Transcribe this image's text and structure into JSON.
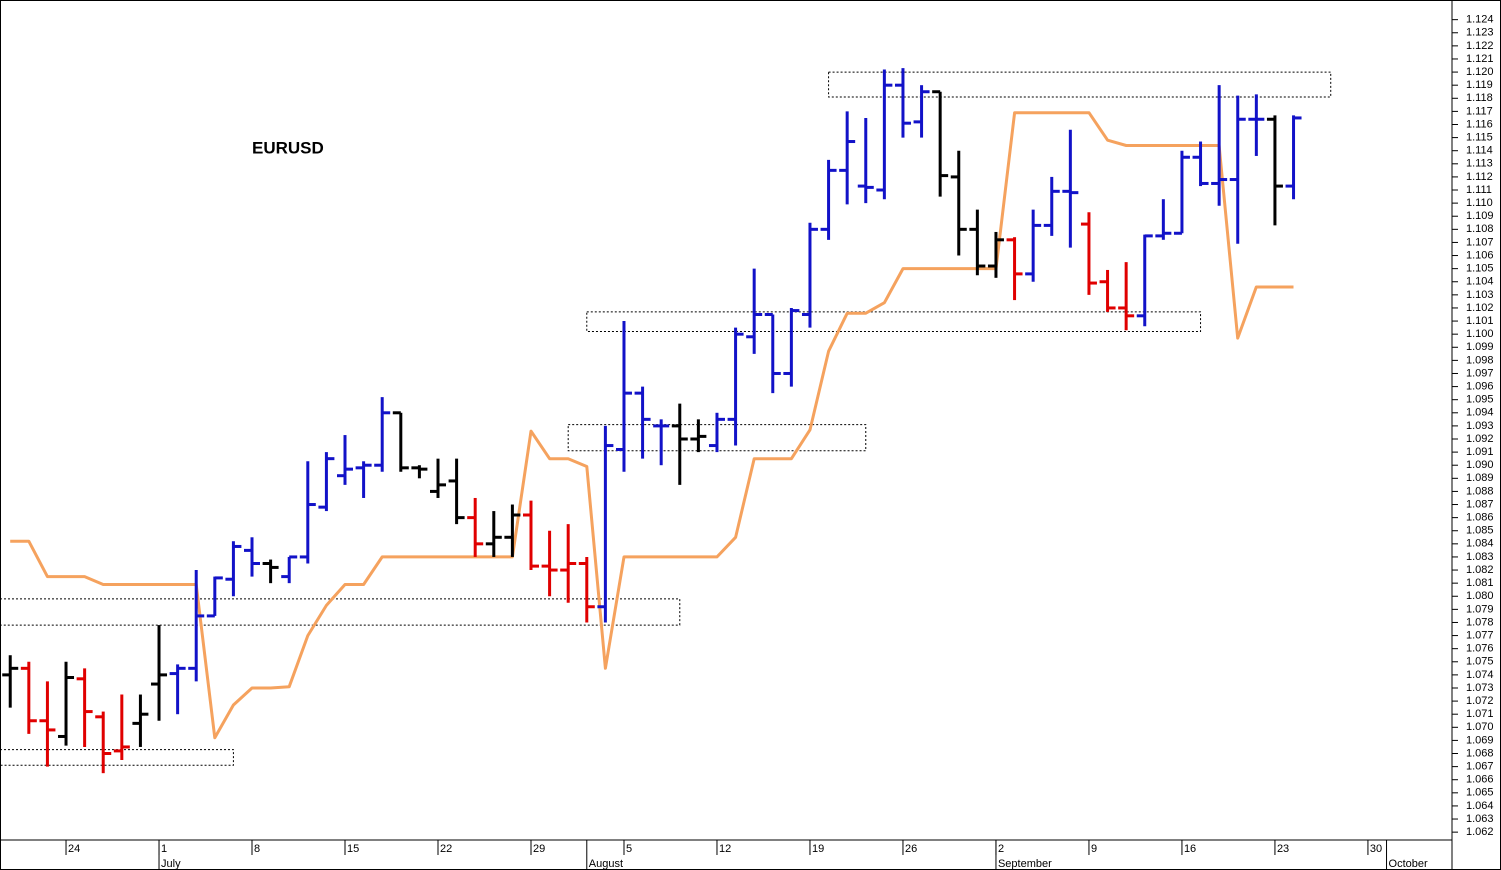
{
  "chart_data": {
    "type": "ohlc",
    "title": "EURUSD",
    "xlim": [
      -3.55,
      74.52
    ],
    "ylim": [
      1.0614,
      1.1255
    ],
    "xticks": [
      {
        "value": 0,
        "label": "24"
      },
      {
        "value": 5,
        "label": "1"
      },
      {
        "value": 10,
        "label": "8"
      },
      {
        "value": 15,
        "label": "15"
      },
      {
        "value": 20,
        "label": "22"
      },
      {
        "value": 25,
        "label": "29"
      },
      {
        "value": 30,
        "label": "5"
      },
      {
        "value": 35,
        "label": "12"
      },
      {
        "value": 40,
        "label": "19"
      },
      {
        "value": 45,
        "label": "26"
      },
      {
        "value": 50,
        "label": "2"
      },
      {
        "value": 55,
        "label": "9"
      },
      {
        "value": 60,
        "label": "16"
      },
      {
        "value": 65,
        "label": "23"
      },
      {
        "value": 70,
        "label": "30"
      }
    ],
    "month_ticks": [
      {
        "value": 5,
        "label": "July"
      },
      {
        "value": 28,
        "label": "August"
      },
      {
        "value": 50,
        "label": "September"
      },
      {
        "value": 71,
        "label": "October"
      }
    ],
    "yticks": [
      1.062,
      1.063,
      1.064,
      1.065,
      1.066,
      1.067,
      1.068,
      1.069,
      {
        "value": 1.07,
        "label": "1.070"
      },
      1.071,
      1.072,
      1.073,
      1.074,
      1.075,
      1.076,
      1.077,
      1.078,
      1.079,
      {
        "value": 1.08,
        "label": "1.080"
      },
      1.081,
      1.082,
      1.083,
      1.084,
      1.085,
      1.086,
      1.087,
      1.088,
      1.089,
      {
        "value": 1.09,
        "label": "1.090"
      },
      1.091,
      1.092,
      1.093,
      1.094,
      1.095,
      1.096,
      1.097,
      1.098,
      1.099,
      {
        "value": 1.1,
        "label": "1.100"
      },
      1.101,
      1.102,
      1.103,
      1.104,
      1.105,
      1.106,
      1.107,
      1.108,
      1.109,
      {
        "value": 1.11,
        "label": "1.110"
      },
      1.111,
      1.112,
      1.113,
      1.114,
      1.115,
      1.116,
      1.117,
      1.118,
      1.119,
      {
        "value": 1.12,
        "label": "1.120"
      },
      1.121,
      1.122,
      1.123,
      1.124
    ],
    "bars": {
      "x": [
        -3,
        -2,
        -1,
        0,
        1,
        2,
        3,
        4,
        5,
        6,
        7,
        8,
        9,
        10,
        11,
        12,
        13,
        14,
        15,
        16,
        17,
        18,
        19,
        20,
        21,
        22,
        23,
        24,
        25,
        26,
        27,
        28,
        29,
        30,
        31,
        32,
        33,
        34,
        35,
        36,
        37,
        38,
        39,
        40,
        41,
        42,
        43,
        44,
        45,
        46,
        47,
        48,
        49,
        50,
        51,
        52,
        53,
        54,
        55,
        56,
        57,
        58,
        59,
        60,
        61,
        62,
        63,
        64,
        65,
        66
      ],
      "open": [
        1.074,
        1.0745,
        1.0705,
        1.0693,
        1.0737,
        1.0708,
        1.0682,
        1.0703,
        1.0733,
        1.0741,
        1.0745,
        1.0785,
        1.0813,
        1.0835,
        1.0825,
        1.0815,
        1.083,
        1.0868,
        1.0892,
        1.0898,
        1.09,
        1.094,
        1.0898,
        1.088,
        1.0888,
        1.086,
        1.084,
        1.0845,
        1.0862,
        1.0823,
        1.082,
        1.0825,
        1.0792,
        1.0912,
        1.0955,
        1.093,
        1.093,
        1.092,
        1.0915,
        1.0935,
        1.0998,
        1.1015,
        1.097,
        1.1015,
        1.108,
        1.1125,
        1.1113,
        1.111,
        1.119,
        1.1162,
        1.1185,
        1.112,
        1.108,
        1.1052,
        1.1072,
        1.1046,
        1.1083,
        1.1109,
        1.1084,
        1.104,
        1.102,
        1.1014,
        1.1075,
        1.1077,
        1.1135,
        1.1115,
        1.1118,
        1.1164,
        1.1164,
        1.1113
      ],
      "high": [
        1.0755,
        1.075,
        1.0735,
        1.075,
        1.0745,
        1.0712,
        1.0725,
        1.0725,
        1.0778,
        1.0748,
        1.082,
        1.0815,
        1.0842,
        1.0845,
        1.0828,
        1.083,
        1.0903,
        1.091,
        1.0923,
        1.0903,
        1.0952,
        1.094,
        1.09,
        1.0905,
        1.0905,
        1.0875,
        1.0865,
        1.087,
        1.0873,
        1.085,
        1.0855,
        1.083,
        1.093,
        1.101,
        1.096,
        1.0935,
        1.0947,
        1.0935,
        1.094,
        1.1005,
        1.105,
        1.1015,
        1.102,
        1.1085,
        1.1133,
        1.117,
        1.1165,
        1.1202,
        1.1203,
        1.119,
        1.1185,
        1.114,
        1.1095,
        1.1078,
        1.1074,
        1.1095,
        1.112,
        1.1156,
        1.1093,
        1.1049,
        1.1055,
        1.1076,
        1.1103,
        1.114,
        1.1147,
        1.119,
        1.1182,
        1.1183,
        1.1167,
        1.1167
      ],
      "low": [
        1.0715,
        1.0695,
        1.067,
        1.0686,
        1.0685,
        1.0665,
        1.0675,
        1.0685,
        1.0705,
        1.071,
        1.0735,
        1.0785,
        1.08,
        1.0815,
        1.081,
        1.081,
        1.0825,
        1.0865,
        1.0885,
        1.0875,
        1.0895,
        1.0895,
        1.089,
        1.0875,
        1.0855,
        1.083,
        1.083,
        1.083,
        1.082,
        1.08,
        1.0795,
        1.078,
        1.078,
        1.0895,
        1.0905,
        1.09,
        1.0885,
        1.091,
        1.091,
        1.0915,
        1.0985,
        1.0955,
        1.096,
        1.1005,
        1.1072,
        1.1099,
        1.11,
        1.1103,
        1.115,
        1.115,
        1.1105,
        1.106,
        1.1045,
        1.1043,
        1.1026,
        1.104,
        1.1075,
        1.1066,
        1.103,
        1.1017,
        1.1003,
        1.1006,
        1.1072,
        1.1077,
        1.1113,
        1.1098,
        1.1069,
        1.1136,
        1.1083,
        1.1103
      ],
      "close": [
        1.0745,
        1.0705,
        1.0698,
        1.0738,
        1.0712,
        1.068,
        1.0685,
        1.071,
        1.074,
        1.0745,
        1.0785,
        1.0814,
        1.0838,
        1.0825,
        1.0822,
        1.083,
        1.087,
        1.0905,
        1.0897,
        1.09,
        1.094,
        1.0898,
        1.0897,
        1.0885,
        1.086,
        1.084,
        1.0845,
        1.0862,
        1.0823,
        1.082,
        1.0825,
        1.0792,
        1.0915,
        1.0955,
        1.0935,
        1.093,
        1.092,
        1.0922,
        1.0935,
        1.1,
        1.1015,
        1.097,
        1.1018,
        1.108,
        1.1125,
        1.1147,
        1.1112,
        1.119,
        1.1161,
        1.1185,
        1.1121,
        1.108,
        1.1052,
        1.1072,
        1.1046,
        1.1083,
        1.1109,
        1.1108,
        1.1039,
        1.102,
        1.1014,
        1.1075,
        1.1077,
        1.1135,
        1.1115,
        1.1118,
        1.1164,
        1.1164,
        1.1113,
        1.1165
      ],
      "colors": [
        "#000",
        "#e00000",
        "#e00000",
        "#000",
        "#e00000",
        "#e00000",
        "#e00000",
        "#000",
        "#000",
        "#1212c8",
        "#1212c8",
        "#1212c8",
        "#1212c8",
        "#1212c8",
        "#000",
        "#1212c8",
        "#1212c8",
        "#1212c8",
        "#1212c8",
        "#1212c8",
        "#1212c8",
        "#000",
        "#000",
        "#000",
        "#000",
        "#e00000",
        "#000",
        "#000",
        "#e00000",
        "#e00000",
        "#e00000",
        "#e00000",
        "#1212c8",
        "#1212c8",
        "#1212c8",
        "#1212c8",
        "#000",
        "#000",
        "#1212c8",
        "#1212c8",
        "#1212c8",
        "#1212c8",
        "#1212c8",
        "#1212c8",
        "#1212c8",
        "#1212c8",
        "#1212c8",
        "#1212c8",
        "#1212c8",
        "#1212c8",
        "#000",
        "#000",
        "#000",
        "#000",
        "#e00000",
        "#1212c8",
        "#1212c8",
        "#1212c8",
        "#e00000",
        "#e00000",
        "#e00000",
        "#1212c8",
        "#1212c8",
        "#1212c8",
        "#1212c8",
        "#1212c8",
        "#1212c8",
        "#1212c8",
        "#000",
        "#1212c8"
      ]
    },
    "line": {
      "color": "#f5a25e",
      "values": [
        1.0842,
        1.0842,
        1.0815,
        1.0815,
        1.0815,
        1.0809,
        1.0809,
        1.0809,
        1.0809,
        1.0809,
        1.0809,
        1.0692,
        1.0717,
        1.073,
        1.073,
        1.0731,
        1.077,
        1.0793,
        1.0809,
        1.0809,
        1.083,
        1.083,
        1.083,
        1.083,
        1.083,
        1.083,
        1.083,
        1.083,
        1.0926,
        1.0905,
        1.0905,
        1.0899,
        1.0745,
        1.083,
        1.083,
        1.083,
        1.083,
        1.083,
        1.083,
        1.0845,
        1.0905,
        1.0905,
        1.0905,
        1.0927,
        1.0987,
        1.1016,
        1.1016,
        1.1024,
        1.105,
        1.105,
        1.105,
        1.105,
        1.105,
        1.105,
        1.1169,
        1.1169,
        1.1169,
        1.1169,
        1.1169,
        1.1148,
        1.1144,
        1.1144,
        1.1144,
        1.1144,
        1.1144,
        1.1144,
        1.0997,
        1.1036,
        1.1036,
        1.1036
      ]
    },
    "zones": [
      {
        "x": [
          -3.55,
          9
        ],
        "y": [
          1.0671,
          1.0683
        ]
      },
      {
        "x": [
          -3.55,
          33
        ],
        "y": [
          1.0778,
          1.0798
        ]
      },
      {
        "x": [
          27,
          43
        ],
        "y": [
          1.0911,
          1.0931
        ]
      },
      {
        "x": [
          28,
          61
        ],
        "y": [
          1.1002,
          1.1017
        ]
      },
      {
        "x": [
          41,
          68
        ],
        "y": [
          1.1181,
          1.12
        ]
      }
    ]
  }
}
